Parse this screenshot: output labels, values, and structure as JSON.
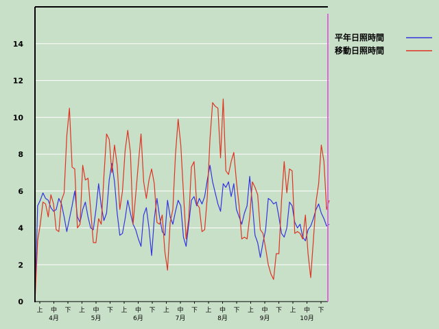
{
  "chart_data": {
    "type": "line",
    "title": "",
    "xlabel": "",
    "ylabel": "",
    "ylim": [
      0,
      16
    ],
    "yticks": [
      0,
      2,
      4,
      6,
      8,
      10,
      12,
      14
    ],
    "grid": true,
    "legend_position": "top-right",
    "x_ticks": [
      "上",
      "中",
      "下",
      "上",
      "中",
      "下",
      "上",
      "中",
      "下",
      "上",
      "中",
      "下",
      "上",
      "中",
      "下",
      "上",
      "中",
      "下",
      "上",
      "中",
      "下"
    ],
    "months": [
      "4月",
      "5月",
      "6月",
      "7月",
      "8月",
      "9月",
      "10月"
    ],
    "series": [
      {
        "name": "平年日照時間",
        "color": "#3333dd",
        "values": [
          0,
          5.2,
          5.5,
          5.9,
          5.6,
          5.5,
          5.1,
          4.9,
          5.0,
          5.6,
          5.3,
          4.6,
          3.8,
          4.5,
          5.2,
          6.0,
          4.6,
          4.3,
          5.0,
          5.4,
          4.6,
          4.0,
          3.9,
          5.0,
          6.4,
          5.2,
          4.4,
          4.8,
          6.6,
          7.5,
          6.5,
          4.8,
          3.6,
          3.7,
          4.5,
          5.5,
          4.8,
          4.2,
          3.9,
          3.4,
          3.0,
          4.7,
          5.1,
          4.0,
          2.5,
          4.5,
          5.6,
          4.6,
          3.8,
          3.6,
          5.5,
          4.6,
          4.2,
          4.9,
          5.5,
          5.2,
          3.5,
          3.0,
          4.2,
          5.5,
          5.7,
          5.2,
          5.6,
          5.3,
          5.7,
          6.6,
          7.4,
          6.5,
          5.9,
          5.3,
          4.9,
          6.4,
          6.2,
          6.5,
          5.7,
          6.4,
          5.0,
          4.6,
          4.2,
          4.8,
          5.2,
          6.8,
          5.3,
          3.6,
          3.2,
          2.4,
          3.2,
          3.9,
          5.6,
          5.5,
          5.3,
          5.4,
          4.6,
          3.7,
          3.5,
          4.0,
          5.4,
          5.2,
          4.3,
          4.0,
          4.2,
          3.5,
          3.3,
          3.9,
          4.1,
          4.5,
          5.0,
          5.3,
          4.8,
          4.5,
          4.1,
          4.2
        ]
      },
      {
        "name": "移動日照時間",
        "color": "#dd3322",
        "values": [
          0,
          3.3,
          4.2,
          5.4,
          5.3,
          4.6,
          5.8,
          5.3,
          3.9,
          3.8,
          5.5,
          5.9,
          9.0,
          10.5,
          7.3,
          7.2,
          4.0,
          4.2,
          7.4,
          6.6,
          6.7,
          5.0,
          3.2,
          3.2,
          4.5,
          4.2,
          6.8,
          9.1,
          8.8,
          7.0,
          8.5,
          7.4,
          5.0,
          6.0,
          8.2,
          9.3,
          8.1,
          4.2,
          5.8,
          7.5,
          9.1,
          6.5,
          5.6,
          6.6,
          7.2,
          6.4,
          4.3,
          4.2,
          4.7,
          2.7,
          1.7,
          4.3,
          5.0,
          8.0,
          9.9,
          8.5,
          5.9,
          3.4,
          4.5,
          7.3,
          7.6,
          5.3,
          5.1,
          3.8,
          3.9,
          5.7,
          8.8,
          10.8,
          10.6,
          10.5,
          7.8,
          11.0,
          7.1,
          6.9,
          7.6,
          8.1,
          6.5,
          5.2,
          3.4,
          3.5,
          3.4,
          4.6,
          6.5,
          6.2,
          5.8,
          3.9,
          3.7,
          2.9,
          2.0,
          1.5,
          1.2,
          2.6,
          2.6,
          5.5,
          7.6,
          5.9,
          7.2,
          7.1,
          3.7,
          3.8,
          3.7,
          3.4,
          4.7,
          2.6,
          1.3,
          3.3,
          5.4,
          6.4,
          8.5,
          7.6,
          5.0,
          5.5
        ]
      }
    ]
  }
}
